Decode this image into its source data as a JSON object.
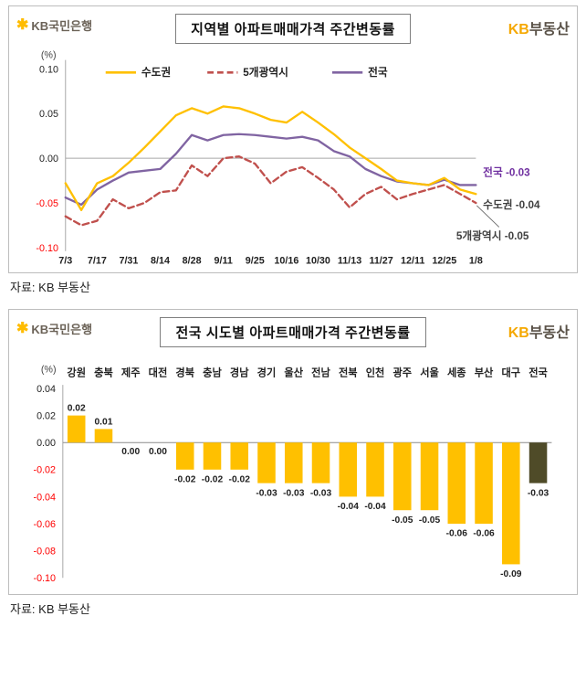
{
  "panel1": {
    "logo": {
      "star": "✱",
      "text": "KB국민은행"
    },
    "title": "지역별 아파트매매가격 주간변동률",
    "brand": {
      "kb": "KB",
      "rest": "부동산"
    },
    "source": "자료: KB 부동산"
  },
  "panel2": {
    "logo": {
      "star": "✱",
      "text": "KB국민은행"
    },
    "title": "전국 시도별 아파트매매가격 주간변동률",
    "brand": {
      "kb": "KB",
      "rest": "부동산"
    },
    "source": "자료: KB 부동산"
  },
  "colors": {
    "kb_yellow": "#FFC000",
    "purple": "#8064A2",
    "red_dashed": "#C0504D",
    "negative_tick": "#FF0000",
    "highlight_bar": "#4F4B28",
    "text_dark": "#222222"
  },
  "chart_data": [
    {
      "type": "line",
      "title": "지역별 아파트매매가격 주간변동률",
      "unit": "(%)",
      "ylim": [
        -0.1,
        0.1
      ],
      "yticks": [
        0.1,
        0.05,
        0.0,
        -0.05,
        -0.1
      ],
      "x": [
        "7/3",
        "7/10",
        "7/17",
        "7/24",
        "7/31",
        "8/7",
        "8/14",
        "8/21",
        "8/28",
        "9/4",
        "9/11",
        "9/18",
        "9/25",
        "10/9",
        "10/16",
        "10/23",
        "10/30",
        "11/6",
        "11/13",
        "11/20",
        "11/27",
        "12/4",
        "12/11",
        "12/18",
        "12/25",
        "1/1",
        "1/8"
      ],
      "xtick_labels": [
        "7/3",
        "7/17",
        "7/31",
        "8/14",
        "8/28",
        "9/11",
        "9/25",
        "10/16",
        "10/30",
        "11/13",
        "11/27",
        "12/11",
        "12/25",
        "1/8"
      ],
      "legend_position": "top",
      "grid": false,
      "series": [
        {
          "name": "수도권",
          "color": "#FFC000",
          "style": "solid",
          "values": [
            -0.028,
            -0.058,
            -0.028,
            -0.02,
            -0.005,
            0.012,
            0.03,
            0.048,
            0.056,
            0.05,
            0.058,
            0.056,
            0.05,
            0.043,
            0.04,
            0.052,
            0.04,
            0.027,
            0.012,
            0.0,
            -0.012,
            -0.025,
            -0.028,
            -0.03,
            -0.022,
            -0.035,
            -0.04
          ]
        },
        {
          "name": "5개광역시",
          "color": "#C0504D",
          "style": "dashed",
          "values": [
            -0.065,
            -0.075,
            -0.07,
            -0.046,
            -0.056,
            -0.05,
            -0.038,
            -0.036,
            -0.008,
            -0.02,
            0.0,
            0.002,
            -0.006,
            -0.028,
            -0.015,
            -0.01,
            -0.022,
            -0.035,
            -0.055,
            -0.04,
            -0.032,
            -0.046,
            -0.04,
            -0.035,
            -0.03,
            -0.04,
            -0.05
          ]
        },
        {
          "name": "전국",
          "color": "#8064A2",
          "style": "solid",
          "values": [
            -0.044,
            -0.052,
            -0.035,
            -0.025,
            -0.016,
            -0.014,
            -0.012,
            0.005,
            0.026,
            0.02,
            0.026,
            0.027,
            0.026,
            0.024,
            0.022,
            0.024,
            0.02,
            0.008,
            0.002,
            -0.012,
            -0.02,
            -0.026,
            -0.028,
            -0.03,
            -0.024,
            -0.03,
            -0.03
          ]
        }
      ],
      "end_labels": [
        {
          "series": "전국",
          "text": "전국 -0.03",
          "color": "#7030A0"
        },
        {
          "series": "수도권",
          "text": "수도권 -0.04",
          "color": "#404040"
        },
        {
          "series": "5개광역시",
          "text": "5개광역시 -0.05",
          "color": "#404040"
        }
      ]
    },
    {
      "type": "bar",
      "title": "전국 시도별 아파트매매가격 주간변동률",
      "unit": "(%)",
      "categories": [
        "강원",
        "충북",
        "제주",
        "대전",
        "경북",
        "충남",
        "경남",
        "경기",
        "울산",
        "전남",
        "전북",
        "인천",
        "광주",
        "서울",
        "세종",
        "부산",
        "대구",
        "전국"
      ],
      "values": [
        0.02,
        0.01,
        0.0,
        0.0,
        -0.02,
        -0.02,
        -0.02,
        -0.03,
        -0.03,
        -0.03,
        -0.04,
        -0.04,
        -0.05,
        -0.05,
        -0.06,
        -0.06,
        -0.09,
        -0.03
      ],
      "bar_color": "#FFC000",
      "highlight_index": 17,
      "highlight_color": "#4F4B28",
      "ylim": [
        -0.1,
        0.04
      ],
      "yticks": [
        0.04,
        0.02,
        0.0,
        -0.02,
        -0.04,
        -0.06,
        -0.08,
        -0.1
      ],
      "value_labels": true,
      "grid": false,
      "legend_position": "none"
    }
  ]
}
